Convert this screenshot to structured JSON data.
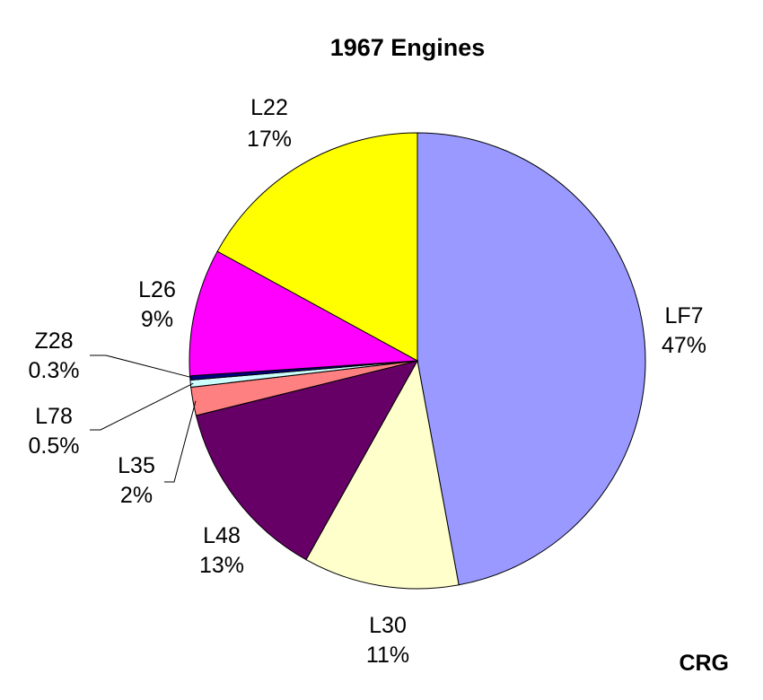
{
  "chart_data": {
    "type": "pie",
    "title": "1967 Engines",
    "credit": "CRG",
    "start_angle_deg": 0,
    "direction": "clockwise",
    "slices": [
      {
        "name": "LF7",
        "value": 47,
        "pct_label": "47%",
        "color": "#9999ff"
      },
      {
        "name": "L30",
        "value": 11,
        "pct_label": "11%",
        "color": "#ffffcc"
      },
      {
        "name": "L48",
        "value": 13,
        "pct_label": "13%",
        "color": "#660066"
      },
      {
        "name": "L35",
        "value": 2,
        "pct_label": "2%",
        "color": "#ff8080"
      },
      {
        "name": "L78",
        "value": 0.5,
        "pct_label": "0.5%",
        "color": "#ccffff"
      },
      {
        "name": "Z28",
        "value": 0.3,
        "pct_label": "0.3%",
        "color": "#000080"
      },
      {
        "name": "L26",
        "value": 9,
        "pct_label": "9%",
        "color": "#ff00ff"
      },
      {
        "name": "L22",
        "value": 17,
        "pct_label": "17%",
        "color": "#ffff00"
      }
    ]
  }
}
